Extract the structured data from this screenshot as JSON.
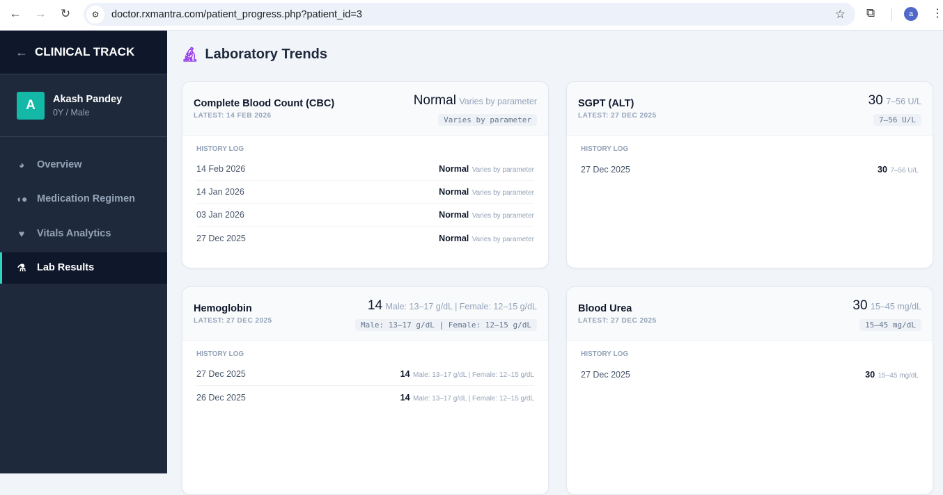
{
  "browser": {
    "url": "doctor.rxmantra.com/patient_progress.php?patient_id=3",
    "profile_initial": "a"
  },
  "sidebar": {
    "title": "CLINICAL TRACK",
    "patient": {
      "initial": "A",
      "name": "Akash Pandey",
      "meta": "0Y / Male"
    },
    "items": [
      {
        "label": "Overview",
        "icon": "chart-pie-icon"
      },
      {
        "label": "Medication Regimen",
        "icon": "pills-icon"
      },
      {
        "label": "Vitals Analytics",
        "icon": "heart-pulse-icon"
      },
      {
        "label": "Lab Results",
        "icon": "flask-icon",
        "active": true
      }
    ]
  },
  "page": {
    "title": "Laboratory Trends",
    "icon": "microscope-icon",
    "history_label": "HISTORY LOG"
  },
  "cards": [
    {
      "title": "Complete Blood Count (CBC)",
      "latest": "LATEST: 14 FEB 2026",
      "value": "Normal",
      "unit": "Varies by parameter",
      "range": "Varies by parameter",
      "history": [
        {
          "date": "14 Feb 2026",
          "value": "Normal",
          "unit": "Varies by parameter"
        },
        {
          "date": "14 Jan 2026",
          "value": "Normal",
          "unit": "Varies by parameter"
        },
        {
          "date": "03 Jan 2026",
          "value": "Normal",
          "unit": "Varies by parameter"
        },
        {
          "date": "27 Dec 2025",
          "value": "Normal",
          "unit": "Varies by parameter"
        }
      ]
    },
    {
      "title": "SGPT (ALT)",
      "latest": "LATEST: 27 DEC 2025",
      "value": "30",
      "unit": "7–56 U/L",
      "range": "7–56 U/L",
      "history": [
        {
          "date": "27 Dec 2025",
          "value": "30",
          "unit": "7–56 U/L"
        }
      ]
    },
    {
      "title": "Hemoglobin",
      "latest": "LATEST: 27 DEC 2025",
      "value": "14",
      "unit": "Male: 13–17 g/dL | Female: 12–15 g/dL",
      "range": "Male: 13–17 g/dL | Female: 12–15 g/dL",
      "history": [
        {
          "date": "27 Dec 2025",
          "value": "14",
          "unit": "Male: 13–17 g/dL | Female: 12–15 g/dL"
        },
        {
          "date": "26 Dec 2025",
          "value": "14",
          "unit": "Male: 13–17 g/dL | Female: 12–15 g/dL"
        }
      ]
    },
    {
      "title": "Blood Urea",
      "latest": "LATEST: 27 DEC 2025",
      "value": "30",
      "unit": "15–45 mg/dL",
      "range": "15–45 mg/dL",
      "history": [
        {
          "date": "27 Dec 2025",
          "value": "30",
          "unit": "15–45 mg/dL"
        }
      ]
    }
  ]
}
